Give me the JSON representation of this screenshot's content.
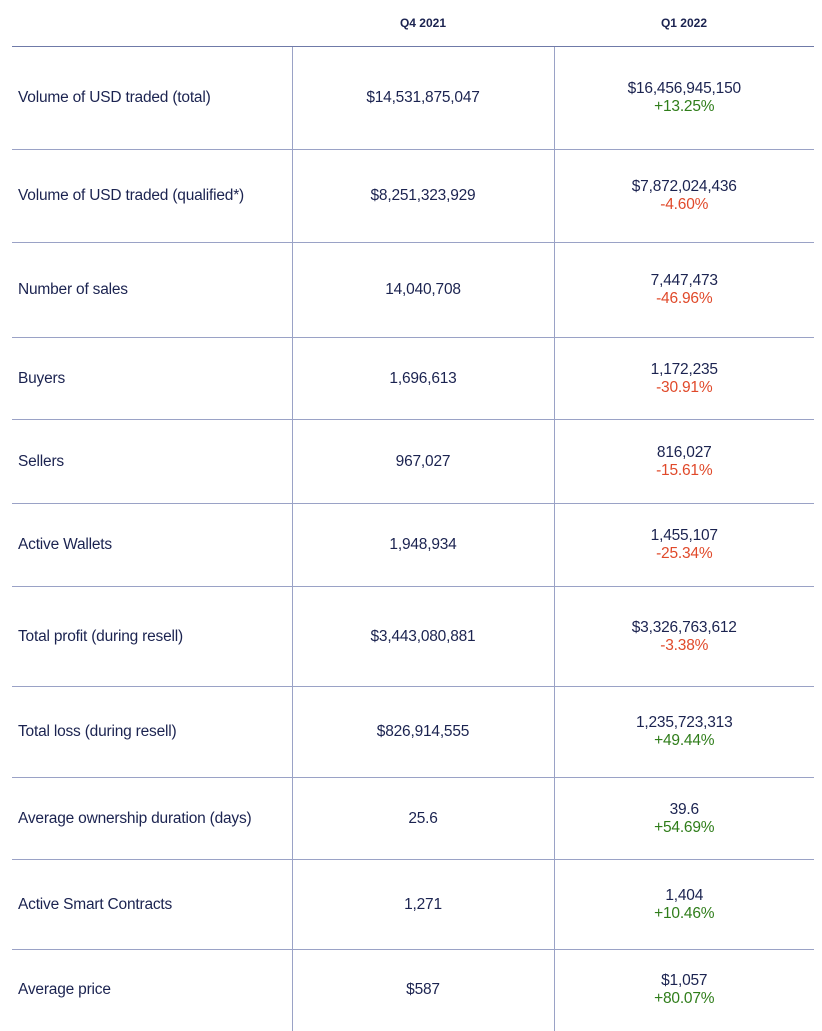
{
  "chart_data": {
    "type": "table",
    "columns": [
      "",
      "Q4 2021",
      "Q1 2022"
    ],
    "rows": [
      {
        "metric": "Volume of USD traded (total)",
        "q4_2021": "$14,531,875,047",
        "q1_2022": "$16,456,945,150",
        "change": "+13.25%",
        "change_sign": "positive"
      },
      {
        "metric": "Volume of USD traded (qualified*)",
        "q4_2021": "$8,251,323,929",
        "q1_2022": "$7,872,024,436",
        "change": "-4.60%",
        "change_sign": "negative"
      },
      {
        "metric": "Number of sales",
        "q4_2021": "14,040,708",
        "q1_2022": "7,447,473",
        "change": "-46.96%",
        "change_sign": "negative"
      },
      {
        "metric": "Buyers",
        "q4_2021": "1,696,613",
        "q1_2022": "1,172,235",
        "change": "-30.91%",
        "change_sign": "negative"
      },
      {
        "metric": "Sellers",
        "q4_2021": "967,027",
        "q1_2022": "816,027",
        "change": "-15.61%",
        "change_sign": "negative"
      },
      {
        "metric": "Active Wallets",
        "q4_2021": "1,948,934",
        "q1_2022": "1,455,107",
        "change": "-25.34%",
        "change_sign": "negative"
      },
      {
        "metric": "Total profit (during resell)",
        "q4_2021": "$3,443,080,881",
        "q1_2022": "$3,326,763,612",
        "change": "-3.38%",
        "change_sign": "negative"
      },
      {
        "metric": "Total loss (during resell)",
        "q4_2021": "$826,914,555",
        "q1_2022": "1,235,723,313",
        "change": "+49.44%",
        "change_sign": "positive"
      },
      {
        "metric": "Average ownership duration (days)",
        "q4_2021": "25.6",
        "q1_2022": "39.6",
        "change": "+54.69%",
        "change_sign": "positive"
      },
      {
        "metric": "Active Smart Contracts",
        "q4_2021": "1,271",
        "q1_2022": "1,404",
        "change": "+10.46%",
        "change_sign": "positive"
      },
      {
        "metric": "Average price",
        "q4_2021": "$587",
        "q1_2022": "$1,057",
        "change": "+80.07%",
        "change_sign": "positive"
      }
    ],
    "colors": {
      "text": "#1b2350",
      "positive": "#2f7d1a",
      "negative": "#e0492a",
      "grid": "#9aa2c6"
    }
  }
}
